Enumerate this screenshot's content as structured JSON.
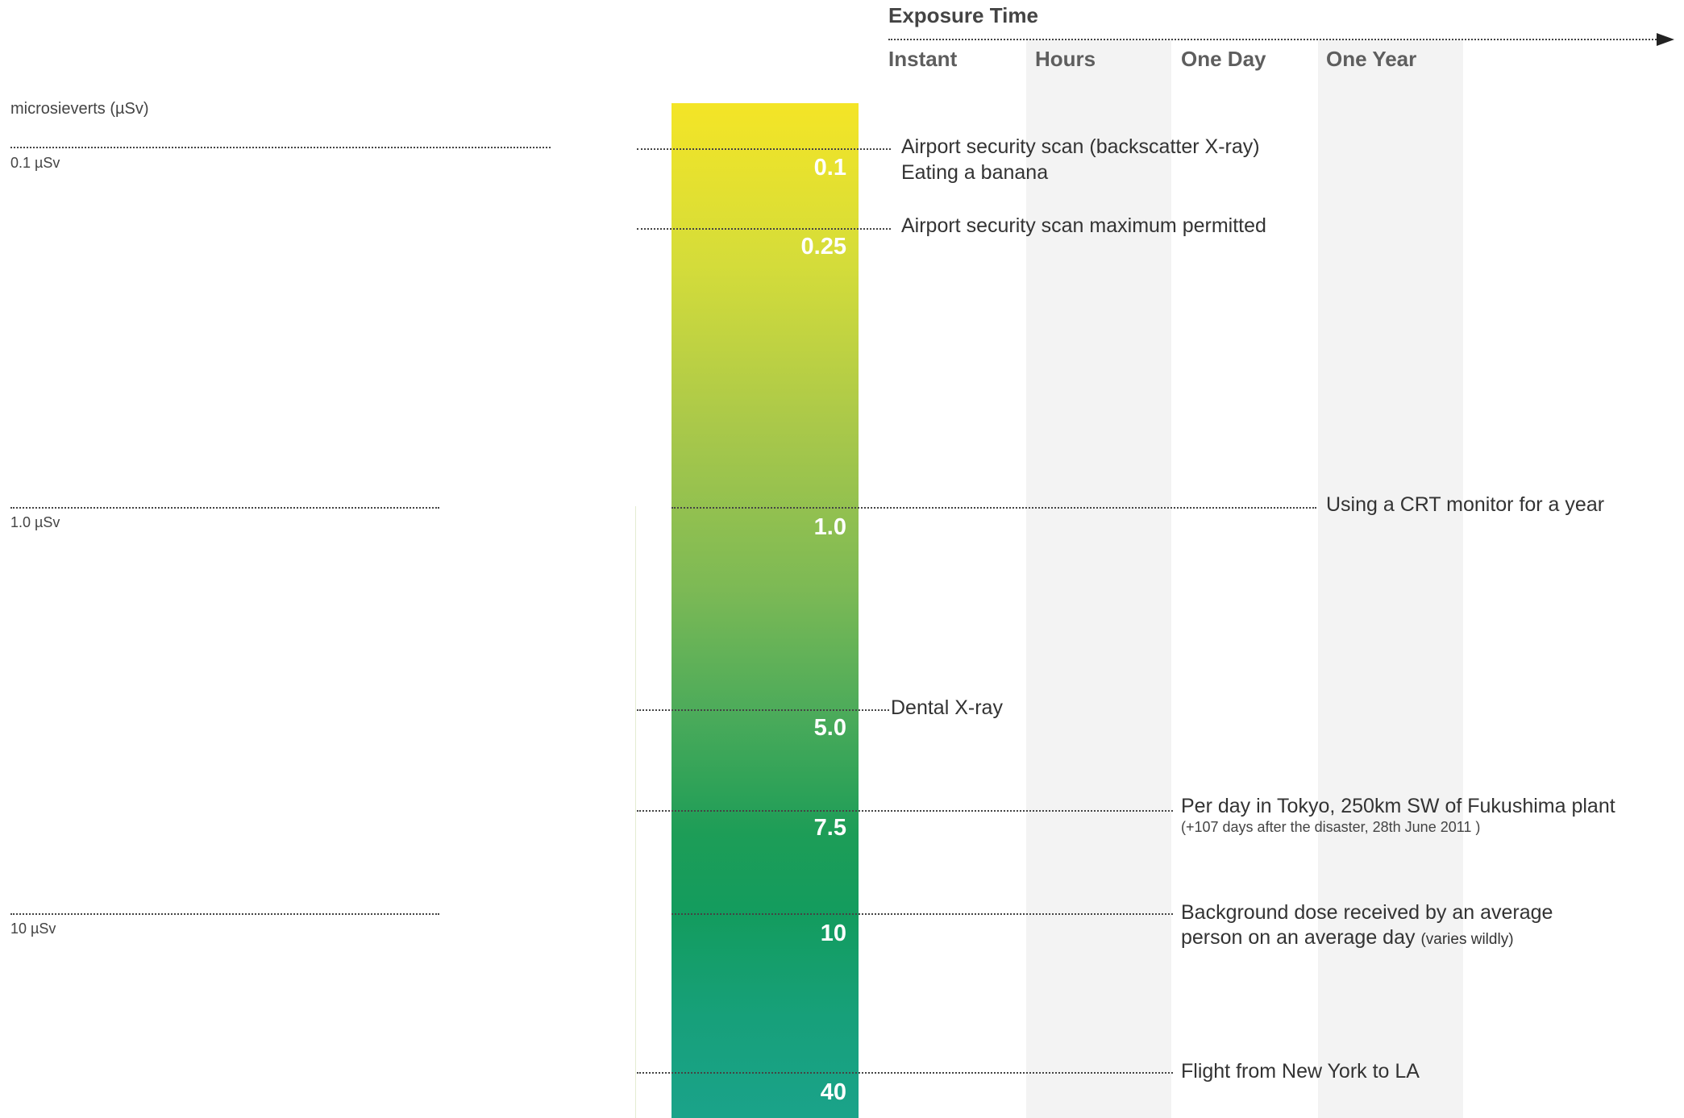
{
  "chart_data": {
    "type": "bar",
    "title": "",
    "y_unit_label": "microsieverts (µSv)",
    "x_axis": {
      "title": "Exposure Time",
      "categories": [
        "Instant",
        "Hours",
        "One Day",
        "One Year"
      ]
    },
    "reference_lines": [
      {
        "value": 0.1,
        "label": "0.1 µSv"
      },
      {
        "value": 1.0,
        "label": "1.0 µSv"
      },
      {
        "value": 10,
        "label": "10 µSv"
      }
    ],
    "events": [
      {
        "value": "0.1",
        "exposure": "Instant",
        "labels": [
          "Airport security scan (backscatter X-ray)",
          "Eating a banana"
        ]
      },
      {
        "value": "0.25",
        "exposure": "Instant",
        "labels": [
          "Airport security scan maximum permitted"
        ]
      },
      {
        "value": "1.0",
        "exposure": "One Year",
        "labels": [
          "Using a CRT monitor for a year"
        ]
      },
      {
        "value": "5.0",
        "exposure": "Instant",
        "labels": [
          "Dental X-ray"
        ]
      },
      {
        "value": "7.5",
        "exposure": "One Day",
        "labels": [
          "Per day in Tokyo, 250km SW of Fukushima plant"
        ],
        "note": "(+107 days after the disaster, 28th June 2011 )"
      },
      {
        "value": "10",
        "exposure": "One Day",
        "labels": [
          "Background dose received by an average",
          "person on an average day"
        ],
        "note": "(varies wildly)"
      },
      {
        "value": "40",
        "exposure": "One Day",
        "labels": [
          "Flight from New York to LA"
        ]
      }
    ],
    "colors": {
      "top": "#f4e526",
      "bottom": "#1aa38a"
    }
  }
}
